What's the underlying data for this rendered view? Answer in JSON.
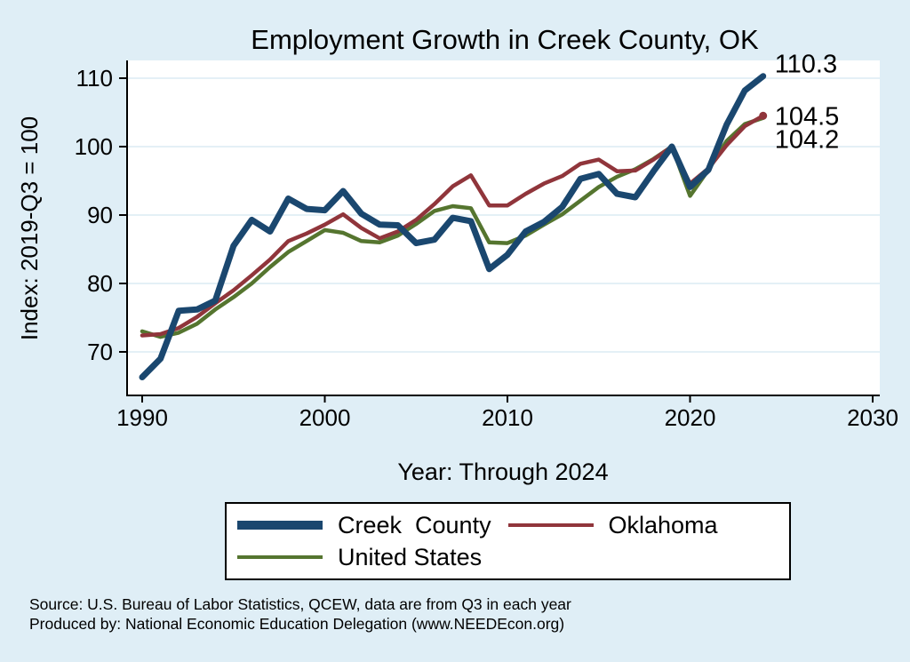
{
  "colors": {
    "background": "#dfeef6",
    "title": "#1a476f",
    "grid": "#d4e6f1",
    "axis": "#000000",
    "creek_county": "#1a476f",
    "oklahoma": "#90353b",
    "united_states": "#55752f"
  },
  "chart_data": {
    "type": "line",
    "title": "Employment Growth in Creek County, OK",
    "xlabel": "Year: Through 2024",
    "ylabel": "Index: 2019-Q3 = 100",
    "xlim": [
      1989.2,
      2030.4
    ],
    "ylim": [
      63.6,
      112.6
    ],
    "xticks": [
      1990,
      2000,
      2010,
      2020,
      2030
    ],
    "yticks": [
      70,
      80,
      90,
      100,
      110
    ],
    "grid": "horizontal",
    "legend_position": "bottom",
    "x": [
      1990,
      1991,
      1992,
      1993,
      1994,
      1995,
      1996,
      1997,
      1998,
      1999,
      2000,
      2001,
      2002,
      2003,
      2004,
      2005,
      2006,
      2007,
      2008,
      2009,
      2010,
      2011,
      2012,
      2013,
      2014,
      2015,
      2016,
      2017,
      2018,
      2019,
      2020,
      2021,
      2022,
      2023,
      2024
    ],
    "series": [
      {
        "name": "Creek  County",
        "color": "#1a476f",
        "end_label": "110.3",
        "end_marker": false,
        "values": [
          66.3,
          69.0,
          76.0,
          76.2,
          77.5,
          85.5,
          89.3,
          87.6,
          92.4,
          90.9,
          90.7,
          93.5,
          90.2,
          88.6,
          88.5,
          85.9,
          86.4,
          89.6,
          89.1,
          82.1,
          84.2,
          87.6,
          89.0,
          91.2,
          95.3,
          96.0,
          93.1,
          92.6,
          96.4,
          100.0,
          94.1,
          96.6,
          103.2,
          108.2,
          110.3
        ]
      },
      {
        "name": "Oklahoma",
        "color": "#90353b",
        "end_label": "104.5",
        "end_marker": true,
        "values": [
          72.4,
          72.6,
          73.5,
          75.1,
          77.1,
          79.0,
          81.2,
          83.5,
          86.2,
          87.3,
          88.6,
          90.1,
          88.1,
          86.6,
          87.6,
          89.3,
          91.6,
          94.2,
          95.8,
          91.4,
          91.4,
          93.1,
          94.6,
          95.7,
          97.5,
          98.1,
          96.4,
          96.5,
          98.1,
          100.0,
          94.6,
          96.8,
          100.2,
          103.0,
          104.5
        ]
      },
      {
        "name": "United States",
        "color": "#55752f",
        "end_label": "104.2",
        "end_marker": false,
        "values": [
          73.0,
          72.2,
          72.8,
          74.1,
          76.2,
          78.0,
          80.0,
          82.4,
          84.6,
          86.2,
          87.8,
          87.4,
          86.2,
          86.0,
          87.0,
          88.7,
          90.6,
          91.3,
          91.0,
          86.0,
          85.9,
          87.0,
          88.6,
          90.1,
          92.1,
          94.1,
          95.6,
          96.7,
          98.2,
          100.0,
          92.8,
          96.6,
          100.8,
          103.3,
          104.2
        ]
      }
    ]
  },
  "notes": [
    "Source: U.S. Bureau of Labor Statistics, QCEW, data are from Q3 in each year",
    "Produced by: National Economic Education Delegation (www.NEEDEcon.org)"
  ]
}
